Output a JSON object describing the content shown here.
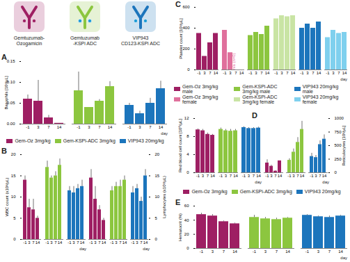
{
  "icons": [
    {
      "lines": [
        "Gemtuzumab-",
        "Ozogamicin"
      ],
      "color": "#9e1f63",
      "payload_color": "#9e1f63"
    },
    {
      "lines": [
        "Gemtuzumab",
        "-KSPi ADC"
      ],
      "color": "#8cc63f",
      "payload_color": "#1c9ad6"
    },
    {
      "lines": [
        "VIP943",
        "CD123-KSPi ADC"
      ],
      "color": "#1c75bc",
      "payload_color": "#1c9ad6"
    }
  ],
  "chart_data": [
    {
      "type": "bar",
      "title": "A",
      "y_label": "Basophils [10³/µL]",
      "x_label": "day",
      "grid": false,
      "categories": [
        "-1",
        "3",
        "7",
        "14"
      ],
      "ylim": [
        0,
        0.15
      ],
      "yticks": [
        {
          "value": 0,
          "label": "0.00"
        },
        0.05,
        {
          "value": 0.1,
          "label": "0.10"
        },
        0.15
      ],
      "series": [
        {
          "name": "Gem-Oz 3mg/kg",
          "color": "#9e1f63",
          "values": [
            0.06,
            0.055,
            0.015,
            0.002
          ],
          "errors": [
            0.01,
            0.05,
            0.006,
            0
          ]
        },
        {
          "name": "Gem-KSPi-ADC 3mg/kg",
          "color": "#8cc63f",
          "values": [
            0.08,
            0.04,
            0.055,
            0.09
          ],
          "errors": [
            0.045,
            0,
            0.004,
            0.012
          ]
        },
        {
          "name": "VIP943 20mg/kg",
          "color": "#1c75bc",
          "values": [
            0.045,
            0.025,
            0.05,
            0.085
          ],
          "errors": [
            0.005,
            0.006,
            0.012,
            0.018
          ]
        }
      ]
    },
    {
      "type": "bar",
      "title": "B",
      "y_label": "WBC count (x10³/µL)",
      "x_label": "day",
      "grid": false,
      "legend": "top",
      "categories": [
        "-1",
        "3",
        "7",
        "14"
      ],
      "ylim": [
        0,
        20
      ],
      "yticks": [
        0,
        5,
        10,
        15,
        20
      ],
      "series": [
        {
          "name": "Gem-Oz 3mg/kg",
          "color": "#9e1f63",
          "values": [
            14,
            7.5,
            7,
            5
          ],
          "errors": [
            1,
            2,
            2.5,
            0.5
          ]
        },
        {
          "name": "Gem-KSPi-ADC 3mg/kg",
          "color": "#8cc63f",
          "values": [
            17,
            14.5,
            15,
            17.5
          ],
          "errors": [
            1.5,
            0.5,
            1,
            1.5
          ]
        },
        {
          "name": "VIP943 20mg/kg",
          "color": "#1c75bc",
          "values": [
            11.5,
            11,
            12,
            12.5
          ],
          "errors": [
            1,
            1.5,
            1,
            1.5
          ]
        }
      ]
    },
    {
      "type": "bar",
      "y2_label": "Lymphocytes (x10³/µL)",
      "x_label": "day",
      "grid": false,
      "categories": [
        "-1",
        "3",
        "7",
        "14"
      ],
      "y2lim": [
        0,
        20
      ],
      "y2ticks": [
        0,
        5,
        10,
        15,
        20
      ],
      "series": [
        {
          "name": "Gem-Oz 3mg/kg",
          "color": "#9e1f63",
          "axis": "y2",
          "values": [
            14.5,
            9.5,
            7,
            4.5
          ],
          "errors": [
            2,
            3,
            1,
            0.5
          ]
        },
        {
          "name": "Gem-KSPi-ADC 3mg/kg",
          "color": "#8cc63f",
          "axis": "y2",
          "values": [
            11.5,
            12.5,
            12.5,
            14
          ],
          "errors": [
            1,
            1,
            1.5,
            1
          ]
        },
        {
          "name": "VIP943 20mg/kg",
          "color": "#1c75bc",
          "axis": "y2",
          "values": [
            11,
            12,
            9,
            15
          ],
          "errors": [
            1.5,
            1,
            1,
            1.5
          ]
        }
      ]
    },
    {
      "type": "bar",
      "title": "C",
      "y_label": "Platelet count [10³/µL]",
      "x_label": "day",
      "grid": false,
      "legend": "bottom",
      "categories": [
        "-1",
        "3",
        "7",
        "14"
      ],
      "ylim": [
        0,
        600
      ],
      "yticks": [
        0,
        200,
        400,
        600
      ],
      "series": [
        {
          "name": "Gem-Oz 3mg/kg male",
          "color": "#9e1f63",
          "values": [
            350,
            130,
            260,
            350
          ]
        },
        {
          "name": "Gem-Oz 3mg/kg female",
          "color": "#e0709c",
          "values": [
            380,
            165,
            null,
            null
          ]
        },
        {
          "name": "Gem-KSPi-ADC 3mg/kg male",
          "color": "#8cc63f",
          "values": [
            330,
            360,
            340,
            420
          ]
        },
        {
          "name": "Gem-KSPi-ADC 3mg/kg female",
          "color": "#c9e4a4",
          "values": [
            490,
            520,
            510,
            520
          ]
        },
        {
          "name": "VIP943 20mg/kg male",
          "color": "#1c75bc",
          "values": [
            400,
            440,
            400,
            460
          ]
        },
        {
          "name": "VIP943 20mg/kg female",
          "color": "#7fd0ee",
          "values": [
            310,
            380,
            350,
            360
          ]
        }
      ],
      "annotations": [
        {
          "text": "n/a (n=0)",
          "series": "Gem-Oz 3mg/kg female",
          "category": "7"
        }
      ]
    },
    {
      "type": "bar",
      "title": "D",
      "y_label": "Red blood cell count [10⁶/µL]",
      "x_label": "day",
      "grid": false,
      "categories": [
        "-1",
        "3",
        "7",
        "14"
      ],
      "ylim": [
        0,
        12
      ],
      "yticks": [
        0,
        4,
        8,
        12
      ],
      "series": [
        {
          "name": "Gem-Oz 3mg/kg",
          "color": "#9e1f63",
          "values": [
            9.5,
            9.3,
            8.5,
            8.3
          ],
          "errors": [
            0.2,
            0.3,
            0.3,
            0.2
          ]
        },
        {
          "name": "Gem-KSPi-ADC 3mg/kg",
          "color": "#8cc63f",
          "values": [
            9.6,
            9.3,
            9.2,
            9.3
          ],
          "errors": [
            0.3,
            0.3,
            0.4,
            0.3
          ]
        },
        {
          "name": "VIP943 20mg/kg",
          "color": "#1c75bc",
          "values": [
            10,
            9.8,
            9.8,
            9.9
          ],
          "errors": [
            0.2,
            0.2,
            0.2,
            0.2
          ]
        }
      ]
    },
    {
      "type": "bar",
      "y2_label": "Reticulocytes [10³/µL]",
      "x_label": "day",
      "grid": false,
      "categories": [
        "-1",
        "3",
        "7",
        "14"
      ],
      "y2lim": [
        0,
        1000
      ],
      "y2ticks": [
        0,
        250,
        500,
        750,
        1000
      ],
      "series": [
        {
          "name": "Gem-Oz 3mg/kg",
          "color": "#9e1f63",
          "axis": "y2",
          "values": [
            180,
            120,
            30,
            220
          ],
          "errors": [
            60,
            20,
            10,
            0
          ]
        },
        {
          "name": "Gem-KSPi-ADC 3mg/kg",
          "color": "#8cc63f",
          "axis": "y2",
          "values": [
            230,
            380,
            560,
            800
          ],
          "errors": [
            30,
            60,
            90,
            150
          ]
        },
        {
          "name": "VIP943 20mg/kg",
          "color": "#1c75bc",
          "axis": "y2",
          "values": [
            300,
            280,
            520,
            620
          ],
          "errors": [
            60,
            40,
            70,
            80
          ]
        }
      ]
    },
    {
      "type": "bar",
      "title": "E",
      "y_label": "Hematocrit (%)",
      "x_label": "day",
      "grid": false,
      "legend": "top",
      "categories": [
        "-1",
        "3",
        "7",
        "14"
      ],
      "ylim": [
        0,
        60
      ],
      "yticks": [
        0,
        20,
        40,
        60
      ],
      "series": [
        {
          "name": "Gem-Oz 3mg/kg",
          "color": "#9e1f63",
          "values": [
            48,
            46,
            38,
            35
          ],
          "errors": [
            2,
            2,
            1,
            1
          ]
        },
        {
          "name": "Gem-KSPi-ADC 3mg/kg",
          "color": "#8cc63f",
          "values": [
            44,
            42,
            41,
            43
          ],
          "errors": [
            3,
            2,
            2,
            1
          ]
        },
        {
          "name": "VIP943 20mg/kg",
          "color": "#1c75bc",
          "values": [
            47,
            45,
            44,
            46
          ],
          "errors": [
            1,
            1,
            2,
            1
          ]
        }
      ]
    }
  ]
}
